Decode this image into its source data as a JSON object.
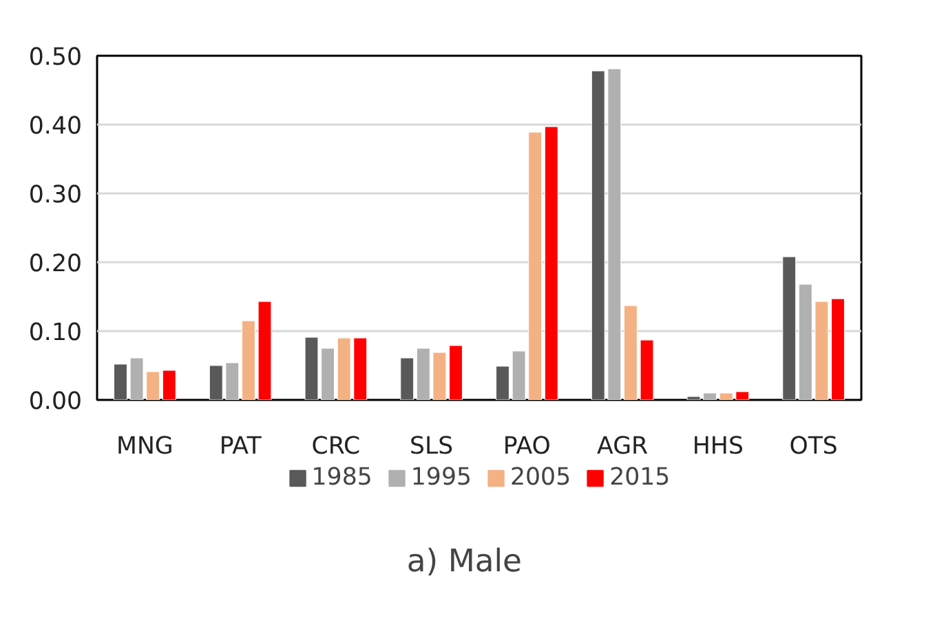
{
  "chart_data": {
    "type": "bar",
    "title": "a)    Male",
    "categories": [
      "MNG",
      "PAT",
      "CRC",
      "SLS",
      "PAO",
      "AGR",
      "HHS",
      "OTS"
    ],
    "series": [
      {
        "name": "1985",
        "color": "#595959",
        "values": [
          0.052,
          0.05,
          0.091,
          0.061,
          0.049,
          0.478,
          0.005,
          0.208
        ]
      },
      {
        "name": "1995",
        "color": "#b0b0b0",
        "values": [
          0.061,
          0.054,
          0.075,
          0.075,
          0.071,
          0.481,
          0.01,
          0.168
        ]
      },
      {
        "name": "2005",
        "color": "#f4b183",
        "values": [
          0.041,
          0.115,
          0.09,
          0.069,
          0.389,
          0.137,
          0.01,
          0.143
        ]
      },
      {
        "name": "2015",
        "color": "#ff0000",
        "values": [
          0.043,
          0.143,
          0.09,
          0.079,
          0.397,
          0.087,
          0.012,
          0.147
        ]
      }
    ],
    "ylim": [
      0,
      0.5
    ],
    "yticks": [
      {
        "value": 0,
        "label": "0.00"
      },
      {
        "value": 0.1,
        "label": "0.10"
      },
      {
        "value": 0.2,
        "label": "0.20"
      },
      {
        "value": 0.3,
        "label": "0.30"
      },
      {
        "value": 0.4,
        "label": "0.40"
      },
      {
        "value": 0.5,
        "label": "0.50"
      }
    ],
    "grid": "y",
    "legend": "bottom"
  }
}
